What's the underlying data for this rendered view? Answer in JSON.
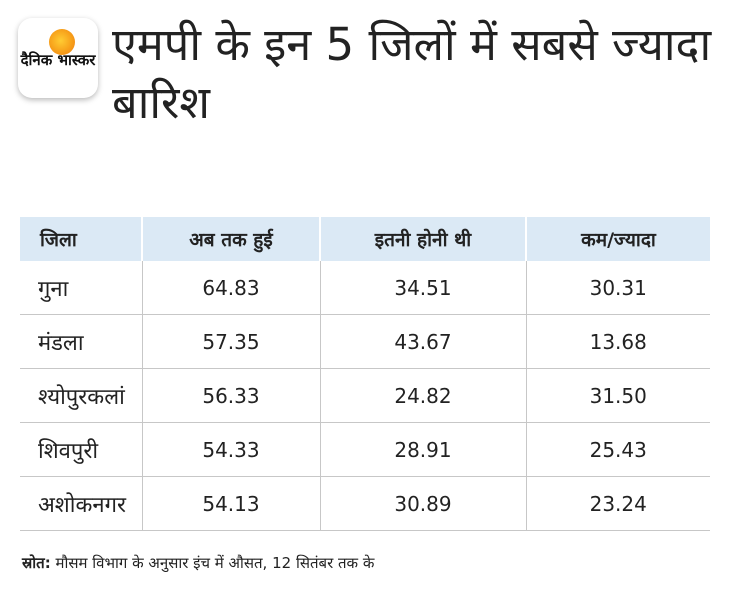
{
  "logo": {
    "text": "दैनिक भास्कर"
  },
  "title": "एमपी के इन 5 जिलों में सबसे ज्यादा बारिश",
  "table": {
    "headers": [
      "जिला",
      "अब तक हुई",
      "इतनी होनी थी",
      "कम/ज्यादा"
    ],
    "rows": [
      [
        "गुना",
        "64.83",
        "34.51",
        "30.31"
      ],
      [
        "मंडला",
        "57.35",
        "43.67",
        "13.68"
      ],
      [
        "श्योपुरकलां",
        "56.33",
        "24.82",
        "31.50"
      ],
      [
        "शिवपुरी",
        "54.33",
        "28.91",
        "25.43"
      ],
      [
        "अशोकनगर",
        "54.13",
        "30.89",
        "23.24"
      ]
    ]
  },
  "source": {
    "label": "स्रोत:",
    "text": "मौसम विभाग के अनुसार इंच में औसत, 12 सितंबर तक के"
  }
}
